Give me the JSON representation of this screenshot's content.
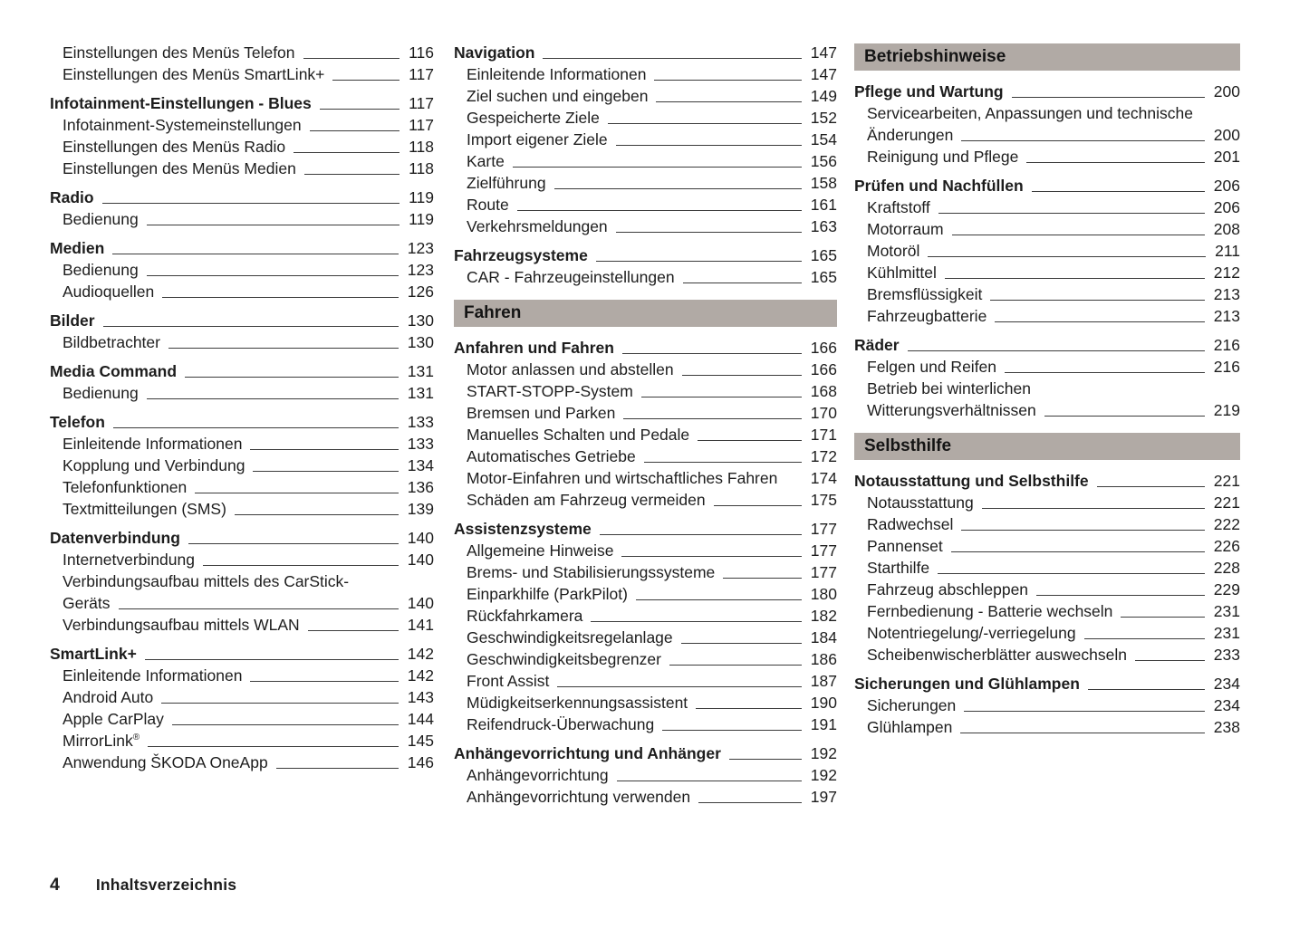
{
  "document": {
    "footer_page_number": "4",
    "footer_label": "Inhaltsverzeichnis"
  },
  "colors": {
    "banner_bg": "#b1aaa5",
    "text": "#1d1d1d",
    "leader_line": "#3c3c3c"
  },
  "columns": [
    {
      "blocks": [
        {
          "type": "group",
          "items": [
            {
              "label": "Einstellungen des Menüs Telefon",
              "page": "116",
              "style": "sub"
            },
            {
              "label": "Einstellungen des Menüs SmartLink+",
              "page": "117",
              "style": "sub"
            }
          ]
        },
        {
          "type": "group",
          "items": [
            {
              "label": "Infotainment-Einstellungen - Blues",
              "page": "117",
              "style": "main"
            },
            {
              "label": "Infotainment-Systemeinstellungen",
              "page": "117",
              "style": "sub"
            },
            {
              "label": "Einstellungen des Menüs Radio",
              "page": "118",
              "style": "sub"
            },
            {
              "label": "Einstellungen des Menüs Medien",
              "page": "118",
              "style": "sub"
            }
          ]
        },
        {
          "type": "group",
          "items": [
            {
              "label": "Radio",
              "page": "119",
              "style": "main"
            },
            {
              "label": "Bedienung",
              "page": "119",
              "style": "sub"
            }
          ]
        },
        {
          "type": "group",
          "items": [
            {
              "label": "Medien",
              "page": "123",
              "style": "main"
            },
            {
              "label": "Bedienung",
              "page": "123",
              "style": "sub"
            },
            {
              "label": "Audioquellen",
              "page": "126",
              "style": "sub"
            }
          ]
        },
        {
          "type": "group",
          "items": [
            {
              "label": "Bilder",
              "page": "130",
              "style": "main"
            },
            {
              "label": "Bildbetrachter",
              "page": "130",
              "style": "sub"
            }
          ]
        },
        {
          "type": "group",
          "items": [
            {
              "label": "Media Command",
              "page": "131",
              "style": "main"
            },
            {
              "label": "Bedienung",
              "page": "131",
              "style": "sub"
            }
          ]
        },
        {
          "type": "group",
          "items": [
            {
              "label": "Telefon",
              "page": "133",
              "style": "main"
            },
            {
              "label": "Einleitende Informationen",
              "page": "133",
              "style": "sub"
            },
            {
              "label": "Kopplung und Verbindung",
              "page": "134",
              "style": "sub"
            },
            {
              "label": "Telefonfunktionen",
              "page": "136",
              "style": "sub"
            },
            {
              "label": "Textmitteilungen (SMS)",
              "page": "139",
              "style": "sub"
            }
          ]
        },
        {
          "type": "group",
          "items": [
            {
              "label": "Datenverbindung",
              "page": "140",
              "style": "main"
            },
            {
              "label": "Internetverbindung",
              "page": "140",
              "style": "sub"
            },
            {
              "label": "Verbindungsaufbau mittels des CarStick-",
              "label_line2": "Geräts",
              "page": "140",
              "style": "sub"
            },
            {
              "label": "Verbindungsaufbau mittels WLAN",
              "page": "141",
              "style": "sub"
            }
          ]
        },
        {
          "type": "group",
          "items": [
            {
              "label": "SmartLink+",
              "page": "142",
              "style": "main"
            },
            {
              "label": "Einleitende Informationen",
              "page": "142",
              "style": "sub"
            },
            {
              "label": "Android Auto",
              "page": "143",
              "style": "sub"
            },
            {
              "label": "Apple CarPlay",
              "page": "144",
              "style": "sub"
            },
            {
              "label": "MirrorLink®",
              "page": "145",
              "style": "sub"
            },
            {
              "label": "Anwendung ŠKODA OneApp",
              "page": "146",
              "style": "sub"
            }
          ]
        }
      ]
    },
    {
      "blocks": [
        {
          "type": "group",
          "items": [
            {
              "label": "Navigation",
              "page": "147",
              "style": "main"
            },
            {
              "label": "Einleitende Informationen",
              "page": "147",
              "style": "sub"
            },
            {
              "label": "Ziel suchen und eingeben",
              "page": "149",
              "style": "sub"
            },
            {
              "label": "Gespeicherte Ziele",
              "page": "152",
              "style": "sub"
            },
            {
              "label": "Import eigener Ziele",
              "page": "154",
              "style": "sub"
            },
            {
              "label": "Karte",
              "page": "156",
              "style": "sub"
            },
            {
              "label": "Zielführung",
              "page": "158",
              "style": "sub"
            },
            {
              "label": "Route",
              "page": "161",
              "style": "sub"
            },
            {
              "label": "Verkehrsmeldungen",
              "page": "163",
              "style": "sub"
            }
          ]
        },
        {
          "type": "group",
          "items": [
            {
              "label": "Fahrzeugsysteme",
              "page": "165",
              "style": "main"
            },
            {
              "label": "CAR - Fahrzeugeinstellungen",
              "page": "165",
              "style": "sub"
            }
          ]
        },
        {
          "type": "banner",
          "text": "Fahren"
        },
        {
          "type": "group",
          "items": [
            {
              "label": "Anfahren und Fahren",
              "page": "166",
              "style": "main"
            },
            {
              "label": "Motor anlassen und abstellen",
              "page": "166",
              "style": "sub"
            },
            {
              "label": "START-STOPP-System",
              "page": "168",
              "style": "sub"
            },
            {
              "label": "Bremsen und Parken",
              "page": "170",
              "style": "sub"
            },
            {
              "label": "Manuelles Schalten und Pedale",
              "page": "171",
              "style": "sub"
            },
            {
              "label": "Automatisches Getriebe",
              "page": "172",
              "style": "sub"
            },
            {
              "label": "Motor-Einfahren und wirtschaftliches Fahren",
              "page": "174",
              "style": "sub",
              "no_leader": true
            },
            {
              "label": "Schäden am Fahrzeug vermeiden",
              "page": "175",
              "style": "sub"
            }
          ]
        },
        {
          "type": "group",
          "items": [
            {
              "label": "Assistenzsysteme",
              "page": "177",
              "style": "main"
            },
            {
              "label": "Allgemeine Hinweise",
              "page": "177",
              "style": "sub"
            },
            {
              "label": "Brems- und Stabilisierungssysteme",
              "page": "177",
              "style": "sub"
            },
            {
              "label": "Einparkhilfe (ParkPilot)",
              "page": "180",
              "style": "sub"
            },
            {
              "label": "Rückfahrkamera",
              "page": "182",
              "style": "sub"
            },
            {
              "label": "Geschwindigkeitsregelanlage",
              "page": "184",
              "style": "sub"
            },
            {
              "label": "Geschwindigkeitsbegrenzer",
              "page": "186",
              "style": "sub"
            },
            {
              "label": "Front Assist",
              "page": "187",
              "style": "sub"
            },
            {
              "label": "Müdigkeitserkennungsassistent",
              "page": "190",
              "style": "sub"
            },
            {
              "label": "Reifendruck-Überwachung",
              "page": "191",
              "style": "sub"
            }
          ]
        },
        {
          "type": "group",
          "items": [
            {
              "label": "Anhängevorrichtung und Anhänger",
              "page": "192",
              "style": "main"
            },
            {
              "label": "Anhängevorrichtung",
              "page": "192",
              "style": "sub"
            },
            {
              "label": "Anhängevorrichtung verwenden",
              "page": "197",
              "style": "sub"
            }
          ]
        }
      ]
    },
    {
      "blocks": [
        {
          "type": "banner",
          "text": "Betriebshinweise"
        },
        {
          "type": "group",
          "items": [
            {
              "label": "Pflege und Wartung",
              "page": "200",
              "style": "main"
            },
            {
              "label": "Servicearbeiten, Anpassungen und technische",
              "label_line2": "Änderungen",
              "page": "200",
              "style": "sub"
            },
            {
              "label": "Reinigung und Pflege",
              "page": "201",
              "style": "sub"
            }
          ]
        },
        {
          "type": "group",
          "items": [
            {
              "label": "Prüfen und Nachfüllen",
              "page": "206",
              "style": "main"
            },
            {
              "label": "Kraftstoff",
              "page": "206",
              "style": "sub"
            },
            {
              "label": "Motorraum",
              "page": "208",
              "style": "sub"
            },
            {
              "label": "Motoröl",
              "page": "211",
              "style": "sub"
            },
            {
              "label": "Kühlmittel",
              "page": "212",
              "style": "sub"
            },
            {
              "label": "Bremsflüssigkeit",
              "page": "213",
              "style": "sub"
            },
            {
              "label": "Fahrzeugbatterie",
              "page": "213",
              "style": "sub"
            }
          ]
        },
        {
          "type": "group",
          "items": [
            {
              "label": "Räder",
              "page": "216",
              "style": "main"
            },
            {
              "label": "Felgen und Reifen",
              "page": "216",
              "style": "sub"
            },
            {
              "label": "Betrieb bei winterlichen",
              "label_line2": "Witterungsverhältnissen",
              "page": "219",
              "style": "sub"
            }
          ]
        },
        {
          "type": "banner",
          "text": "Selbsthilfe"
        },
        {
          "type": "group",
          "items": [
            {
              "label": "Notausstattung und Selbsthilfe",
              "page": "221",
              "style": "main"
            },
            {
              "label": "Notausstattung",
              "page": "221",
              "style": "sub"
            },
            {
              "label": "Radwechsel",
              "page": "222",
              "style": "sub"
            },
            {
              "label": "Pannenset",
              "page": "226",
              "style": "sub"
            },
            {
              "label": "Starthilfe",
              "page": "228",
              "style": "sub"
            },
            {
              "label": "Fahrzeug abschleppen",
              "page": "229",
              "style": "sub"
            },
            {
              "label": "Fernbedienung - Batterie wechseln",
              "page": "231",
              "style": "sub"
            },
            {
              "label": "Notentriegelung/-verriegelung",
              "page": "231",
              "style": "sub"
            },
            {
              "label": "Scheibenwischerblätter auswechseln",
              "page": "233",
              "style": "sub"
            }
          ]
        },
        {
          "type": "group",
          "items": [
            {
              "label": "Sicherungen und Glühlampen",
              "page": "234",
              "style": "main"
            },
            {
              "label": "Sicherungen",
              "page": "234",
              "style": "sub"
            },
            {
              "label": "Glühlampen",
              "page": "238",
              "style": "sub"
            }
          ]
        }
      ]
    }
  ]
}
